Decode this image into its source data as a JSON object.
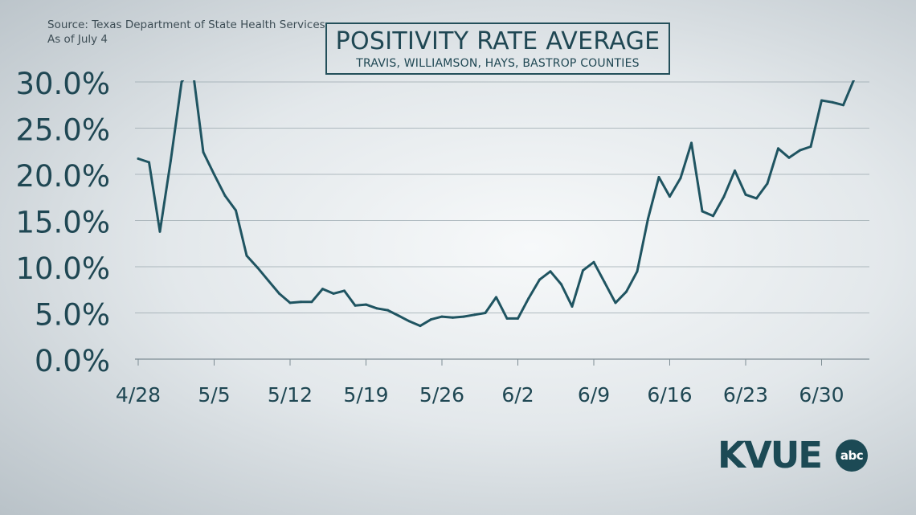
{
  "header": {
    "source": "Source: Texas Department of State Health Services",
    "as_of": "As of July 4",
    "title": "POSITIVITY RATE AVERAGE",
    "subtitle": "TRAVIS, WILLIAMSON, HAYS, BASTROP COUNTIES"
  },
  "logo": {
    "text": "KVUE",
    "badge": "abc"
  },
  "colors": {
    "line": "#1f5461",
    "grid": "#9aa7ae",
    "text": "#1f4753"
  },
  "chart_data": {
    "type": "line",
    "title": "POSITIVITY RATE AVERAGE",
    "subtitle": "TRAVIS, WILLIAMSON, HAYS, BASTROP COUNTIES",
    "xlabel": "",
    "ylabel": "",
    "ylim": [
      0,
      30
    ],
    "yticks": [
      0,
      5,
      10,
      15,
      20,
      25,
      30
    ],
    "ytick_labels": [
      "0.0%",
      "5.0%",
      "10.0%",
      "15.0%",
      "20.0%",
      "25.0%",
      "30.0%"
    ],
    "xtick_labels": [
      "4/28",
      "5/5",
      "5/12",
      "5/19",
      "5/26",
      "6/2",
      "6/9",
      "6/16",
      "6/23",
      "6/30"
    ],
    "grid": true,
    "clipped_above_ylim": true,
    "x": [
      "4/28",
      "4/29",
      "4/30",
      "5/1",
      "5/2",
      "5/3",
      "5/4",
      "5/5",
      "5/6",
      "5/7",
      "5/8",
      "5/9",
      "5/10",
      "5/11",
      "5/12",
      "5/13",
      "5/14",
      "5/15",
      "5/16",
      "5/17",
      "5/18",
      "5/19",
      "5/20",
      "5/21",
      "5/22",
      "5/23",
      "5/24",
      "5/25",
      "5/26",
      "5/27",
      "5/28",
      "5/29",
      "5/30",
      "5/31",
      "6/1",
      "6/2",
      "6/3",
      "6/4",
      "6/5",
      "6/6",
      "6/7",
      "6/8",
      "6/9",
      "6/10",
      "6/11",
      "6/12",
      "6/13",
      "6/14",
      "6/15",
      "6/16",
      "6/17",
      "6/18",
      "6/19",
      "6/20",
      "6/21",
      "6/22",
      "6/23",
      "6/24",
      "6/25",
      "6/26",
      "6/27",
      "6/28",
      "6/29",
      "6/30",
      "7/1",
      "7/2",
      "7/3"
    ],
    "series": [
      {
        "values": [
          21.7,
          21.3,
          13.8,
          21.5,
          30.0,
          31.6,
          22.4,
          20.0,
          17.7,
          16.1,
          11.2,
          9.9,
          8.5,
          7.1,
          6.1,
          6.2,
          6.2,
          7.6,
          7.1,
          7.4,
          5.8,
          5.9,
          5.5,
          5.3,
          4.7,
          4.1,
          3.6,
          4.3,
          4.6,
          4.5,
          4.6,
          4.8,
          5.0,
          6.7,
          4.4,
          4.4,
          6.6,
          8.6,
          9.5,
          8.1,
          5.7,
          9.6,
          10.5,
          8.3,
          6.1,
          7.3,
          9.5,
          15.2,
          19.7,
          17.6,
          19.6,
          23.4,
          16.0,
          15.5,
          17.6,
          20.4,
          17.8,
          17.4,
          19.0,
          22.8,
          21.8,
          22.6,
          23.0,
          28.0,
          27.8,
          27.5,
          30.3
        ]
      }
    ]
  }
}
